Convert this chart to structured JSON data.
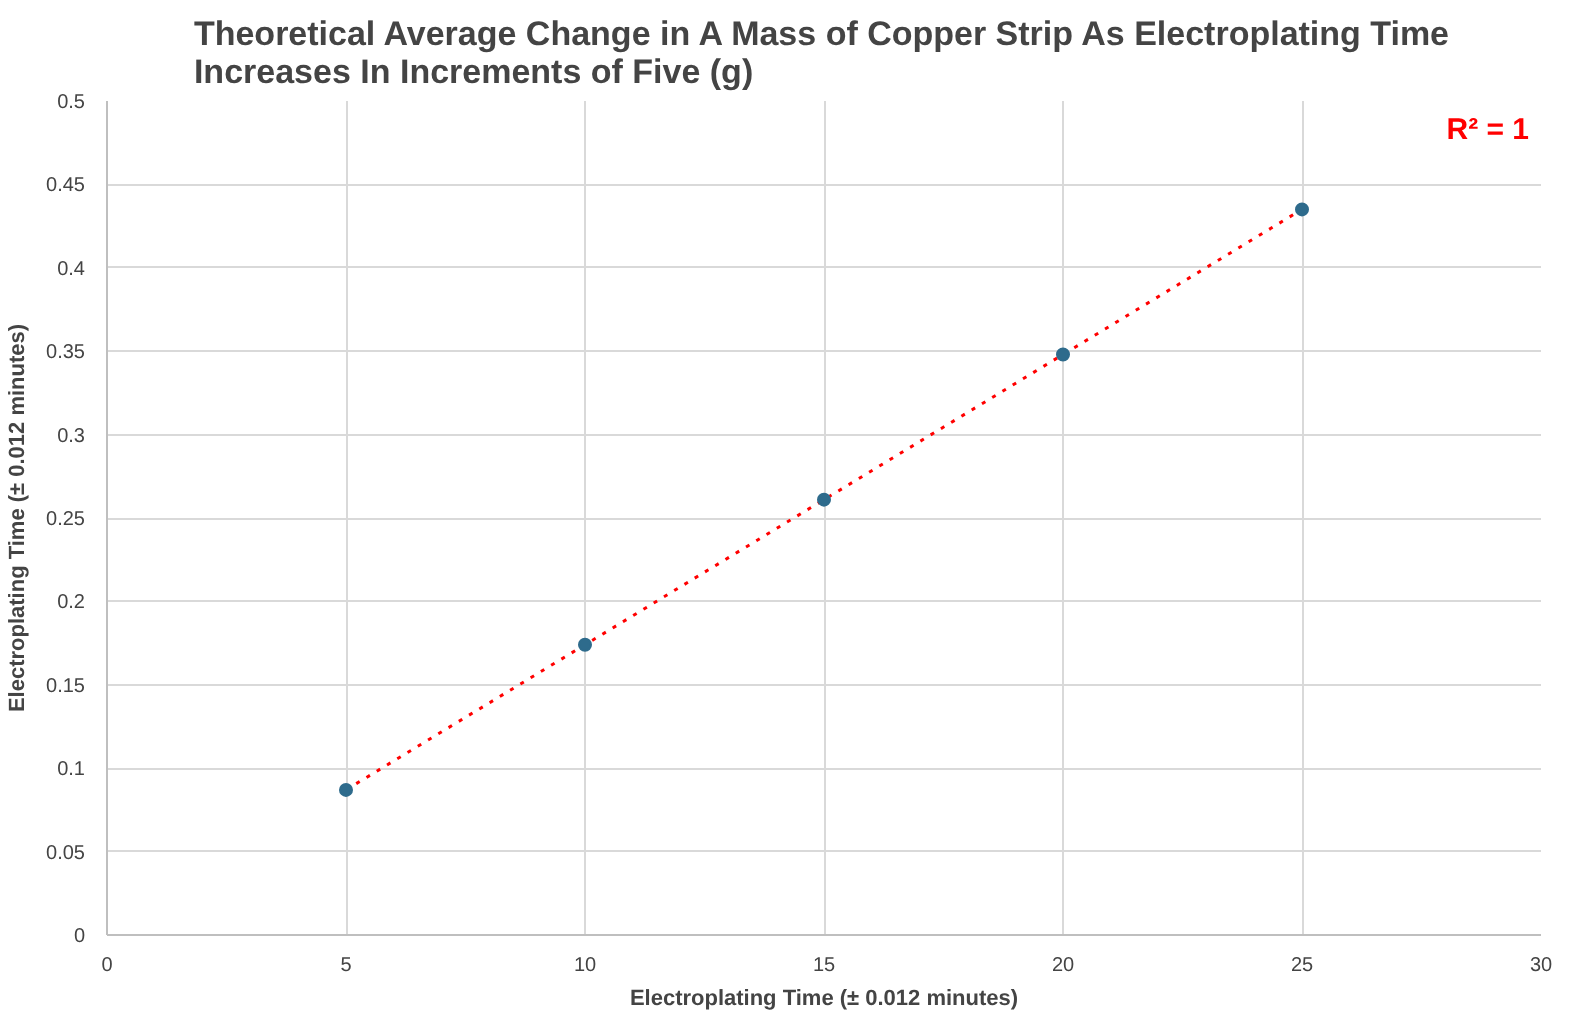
{
  "chart_data": {
    "type": "scatter",
    "title": "Theoretical Average Change in A Mass of Copper Strip As Electroplating Time\nIncreases In Increments of Five (g)",
    "xlabel": "Electroplating Time (± 0.012 minutes)",
    "ylabel": "Electroplating Time (± 0.012 minutes)",
    "x": [
      5,
      10,
      15,
      20,
      25
    ],
    "series": [
      {
        "color": "#2e6b8c",
        "values": [
          0.087,
          0.174,
          0.261,
          0.348,
          0.435
        ]
      },
      {
        "type": "line",
        "color": "#ff0000",
        "line_style": "dotted",
        "marker": "none",
        "x": [
          5,
          25
        ],
        "values": [
          0.087,
          0.435
        ]
      }
    ],
    "annotations": [
      "R² = 1"
    ],
    "xlim": [
      0,
      30
    ],
    "xticks": [
      0,
      5,
      10,
      15,
      20,
      25,
      30
    ],
    "ylim": [
      0,
      0.5
    ],
    "yticks": [
      0,
      0.05,
      0.1,
      0.15,
      0.2,
      0.25,
      0.3,
      0.35,
      0.4,
      0.45,
      0.5
    ],
    "grid": true,
    "marker": "circle"
  }
}
